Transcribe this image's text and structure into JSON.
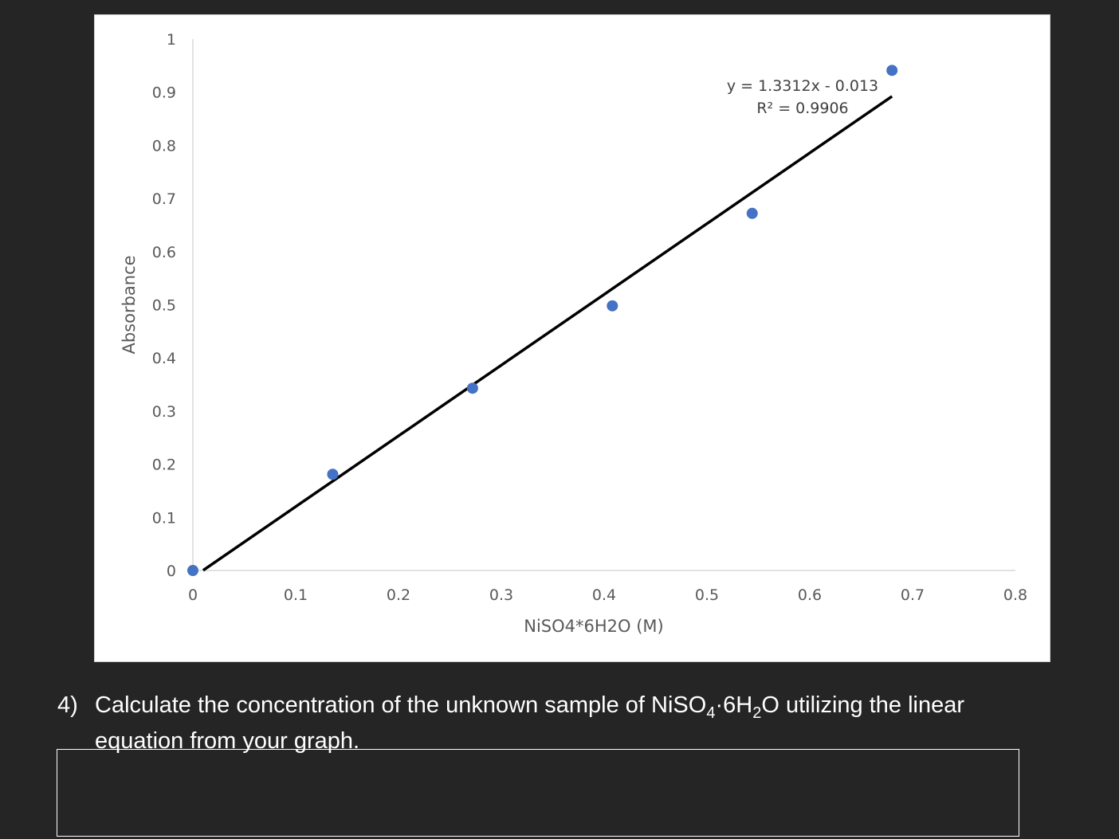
{
  "chart_data": {
    "type": "scatter",
    "title": "",
    "xlabel": "NiSO4*6H2O (M)",
    "ylabel": "Absorbance",
    "xlim": [
      0,
      0.8
    ],
    "ylim": [
      0,
      1
    ],
    "x_ticks": [
      "0",
      "0.1",
      "0.2",
      "0.3",
      "0.4",
      "0.5",
      "0.6",
      "0.7",
      "0.8"
    ],
    "y_ticks": [
      "0",
      "0.1",
      "0.2",
      "0.3",
      "0.4",
      "0.5",
      "0.6",
      "0.7",
      "0.8",
      "0.9",
      "1"
    ],
    "grid": false,
    "legend": "none",
    "series": [
      {
        "x": [
          0,
          0.136,
          0.272,
          0.408,
          0.544,
          0.68
        ],
        "y": [
          0,
          0.181,
          0.343,
          0.498,
          0.672,
          0.941
        ],
        "color": "#4472C4"
      }
    ],
    "trendline": {
      "type": "linear",
      "slope": 1.3312,
      "intercept": -0.013,
      "x_range": [
        0.01,
        0.68
      ],
      "color": "#000000",
      "equation_label": "y = 1.3312x - 0.013",
      "r2_label": "R² = 0.9906"
    }
  },
  "question": {
    "number": "4)",
    "line1_before": "Calculate the concentration of the unknown sample of NiSO",
    "sub1": "4",
    "dot": "·",
    "mid": "6H",
    "sub2": "2",
    "line1_after": "O utilizing the linear",
    "line2": "equation from your graph."
  },
  "answer_box": {
    "value": ""
  }
}
